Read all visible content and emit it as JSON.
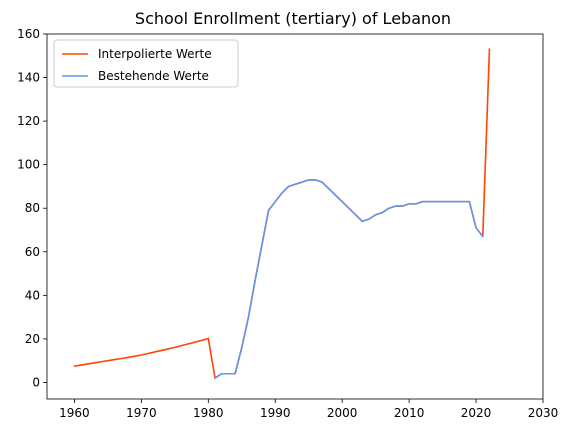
{
  "chart_data": {
    "type": "line",
    "title": "School Enrollment (tertiary) of Lebanon",
    "xlabel": "",
    "ylabel": "",
    "xlim": [
      1955.9,
      2030
    ],
    "ylim": [
      -7.6,
      160
    ],
    "xticks": [
      1960,
      1970,
      1980,
      1990,
      2000,
      2010,
      2020,
      2030
    ],
    "yticks": [
      0,
      20,
      40,
      60,
      80,
      100,
      120,
      140,
      160
    ],
    "grid": false,
    "legend_position": "top-left",
    "series": [
      {
        "name": "Interpolierte Werte",
        "color": "#ff4500",
        "x": [
          1960,
          1961,
          1962,
          1963,
          1964,
          1965,
          1966,
          1967,
          1968,
          1969,
          1970,
          1971,
          1972,
          1973,
          1974,
          1975,
          1976,
          1977,
          1978,
          1979,
          1980,
          1981,
          1982,
          1983,
          1984,
          1985,
          1986,
          1987,
          1988,
          1989,
          1990,
          1991,
          1992,
          1993,
          1994,
          1995,
          1996,
          1997,
          1998,
          1999,
          2000,
          2001,
          2002,
          2003,
          2004,
          2005,
          2006,
          2007,
          2008,
          2009,
          2010,
          2011,
          2012,
          2013,
          2014,
          2015,
          2016,
          2017,
          2018,
          2019,
          2020,
          2021,
          2022
        ],
        "y": [
          7.5,
          8.0,
          8.5,
          9.0,
          9.5,
          10.0,
          10.5,
          11.0,
          11.5,
          12.0,
          12.6,
          13.3,
          14.0,
          14.7,
          15.4,
          16.1,
          16.9,
          17.7,
          18.5,
          19.3,
          20.2,
          2.0,
          4.0,
          4.0,
          4.0,
          16.0,
          30.0,
          47.0,
          63.0,
          79.0,
          83.0,
          87.0,
          90.0,
          91.0,
          92.0,
          93.0,
          93.0,
          92.0,
          89.0,
          86.0,
          83.0,
          80.0,
          77.0,
          74.0,
          75.0,
          77.0,
          78.0,
          80.0,
          81.0,
          81.0,
          82.0,
          82.0,
          83.0,
          83.0,
          83.0,
          83.0,
          83.0,
          83.0,
          83.0,
          83.0,
          71.0,
          67.0,
          153.0
        ]
      },
      {
        "name": "Bestehende Werte",
        "color": "#6495ed",
        "x": [
          1981,
          1982,
          1983,
          1984,
          1985,
          1986,
          1987,
          1988,
          1989,
          1990,
          1991,
          1992,
          1993,
          1994,
          1995,
          1996,
          1997,
          1998,
          1999,
          2000,
          2001,
          2002,
          2003,
          2004,
          2005,
          2006,
          2007,
          2008,
          2009,
          2010,
          2011,
          2012,
          2013,
          2014,
          2015,
          2016,
          2017,
          2018,
          2019,
          2020,
          2021
        ],
        "y": [
          2.0,
          4.0,
          4.0,
          4.0,
          16.0,
          30.0,
          47.0,
          63.0,
          79.0,
          83.0,
          87.0,
          90.0,
          91.0,
          92.0,
          93.0,
          93.0,
          92.0,
          89.0,
          86.0,
          83.0,
          80.0,
          77.0,
          74.0,
          75.0,
          77.0,
          78.0,
          80.0,
          81.0,
          81.0,
          82.0,
          82.0,
          83.0,
          83.0,
          83.0,
          83.0,
          83.0,
          83.0,
          83.0,
          83.0,
          71.0,
          67.0
        ]
      }
    ]
  }
}
